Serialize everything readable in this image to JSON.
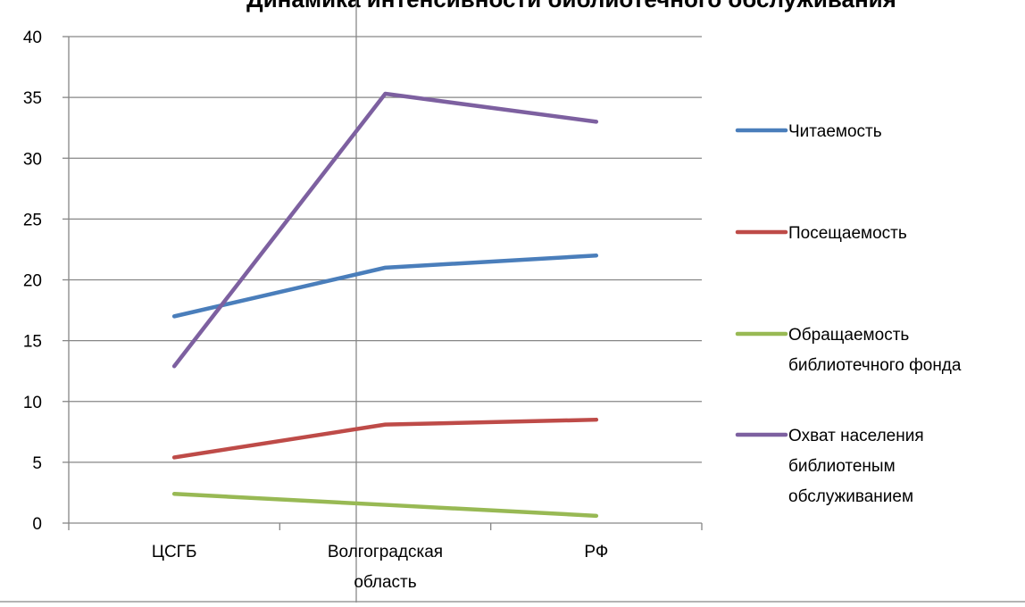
{
  "chart_data": {
    "type": "line",
    "title": "Динамика интенсивности библиотечного обслуживания",
    "xlabel": "",
    "ylabel": "",
    "categories": [
      [
        "ЦСГБ"
      ],
      [
        "Волгоградская",
        "область"
      ],
      [
        "РФ"
      ]
    ],
    "ylim": [
      0,
      40
    ],
    "yticks": [
      0,
      5,
      10,
      15,
      20,
      25,
      30,
      35,
      40
    ],
    "grid": true,
    "legend_position": "right",
    "series": [
      {
        "name": [
          "Читаемость"
        ],
        "color": "#4a7ebb",
        "values": [
          17,
          21,
          22
        ]
      },
      {
        "name": [
          "Посещаемость"
        ],
        "color": "#be4b48",
        "values": [
          5.4,
          8.1,
          8.5
        ]
      },
      {
        "name": [
          "Обращаемость",
          "библиотечного фонда"
        ],
        "color": "#98b954",
        "values": [
          2.4,
          1.5,
          0.6
        ]
      },
      {
        "name": [
          "Охват населения",
          "библиотеным",
          "обслуживанием"
        ],
        "color": "#7d60a0",
        "values": [
          12.9,
          35.3,
          33
        ]
      }
    ]
  }
}
